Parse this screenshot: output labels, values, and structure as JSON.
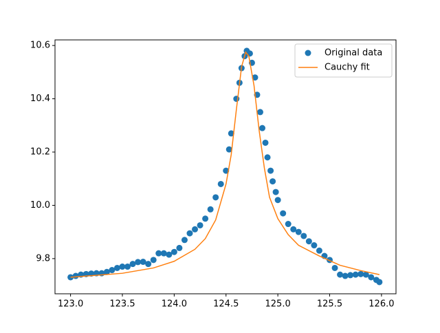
{
  "chart_data": {
    "type": "scatter",
    "xlim": [
      122.85,
      126.14
    ],
    "ylim": [
      9.668,
      10.621
    ],
    "xticks": [
      {
        "value": 123,
        "label": "123.0"
      },
      123.5,
      {
        "value": 124,
        "label": "124.0"
      },
      124.5,
      {
        "value": 125,
        "label": "125.0"
      },
      125.5,
      {
        "value": 126,
        "label": "126.0"
      }
    ],
    "yticks": [
      9.8,
      {
        "value": 10,
        "label": "10.0"
      },
      10.2,
      10.4,
      10.6
    ],
    "legend": "upper right",
    "series": [
      {
        "name": "Original data",
        "color": "#1f77b4",
        "style": "points",
        "x": [
          123.0,
          123.05,
          123.1,
          123.15,
          123.2,
          123.25,
          123.3,
          123.35,
          123.4,
          123.45,
          123.5,
          123.55,
          123.6,
          123.65,
          123.7,
          123.75,
          123.8,
          123.85,
          123.9,
          123.95,
          124.0,
          124.05,
          124.1,
          124.15,
          124.2,
          124.25,
          124.3,
          124.35,
          124.4,
          124.45,
          124.5,
          124.53,
          124.55,
          124.6,
          124.63,
          124.65,
          124.68,
          124.7,
          124.73,
          124.75,
          124.78,
          124.8,
          124.83,
          124.85,
          124.88,
          124.9,
          124.93,
          124.95,
          124.98,
          125.0,
          125.05,
          125.1,
          125.15,
          125.2,
          125.25,
          125.3,
          125.35,
          125.4,
          125.45,
          125.5,
          125.55,
          125.6,
          125.65,
          125.7,
          125.75,
          125.8,
          125.85,
          125.9,
          125.95,
          125.98
        ],
        "values": [
          9.73,
          9.735,
          9.74,
          9.742,
          9.744,
          9.745,
          9.745,
          9.75,
          9.757,
          9.765,
          9.77,
          9.77,
          9.78,
          9.787,
          9.788,
          9.78,
          9.795,
          9.82,
          9.82,
          9.815,
          9.825,
          9.84,
          9.87,
          9.895,
          9.91,
          9.925,
          9.95,
          9.985,
          10.03,
          10.08,
          10.13,
          10.21,
          10.27,
          10.4,
          10.46,
          10.515,
          10.56,
          10.58,
          10.57,
          10.535,
          10.48,
          10.415,
          10.35,
          10.29,
          10.235,
          10.18,
          10.13,
          10.09,
          10.05,
          10.02,
          9.97,
          9.93,
          9.91,
          9.9,
          9.885,
          9.865,
          9.85,
          9.83,
          9.81,
          9.795,
          9.765,
          9.74,
          9.735,
          9.738,
          9.74,
          9.742,
          9.74,
          9.73,
          9.72,
          9.712
        ]
      },
      {
        "name": "Cauchy fit",
        "color": "#ff7f0e",
        "style": "line",
        "x": [
          123.0,
          123.5,
          123.8,
          124.0,
          124.2,
          124.3,
          124.4,
          124.5,
          124.55,
          124.6,
          124.65,
          124.69,
          124.72,
          124.77,
          124.82,
          124.87,
          124.92,
          125.0,
          125.1,
          125.2,
          125.4,
          125.6,
          125.8,
          125.98
        ],
        "values": [
          9.73,
          9.745,
          9.765,
          9.79,
          9.835,
          9.875,
          9.945,
          10.08,
          10.19,
          10.36,
          10.52,
          10.575,
          10.56,
          10.45,
          10.28,
          10.14,
          10.03,
          9.95,
          9.89,
          9.85,
          9.81,
          9.775,
          9.755,
          9.74
        ]
      }
    ]
  }
}
